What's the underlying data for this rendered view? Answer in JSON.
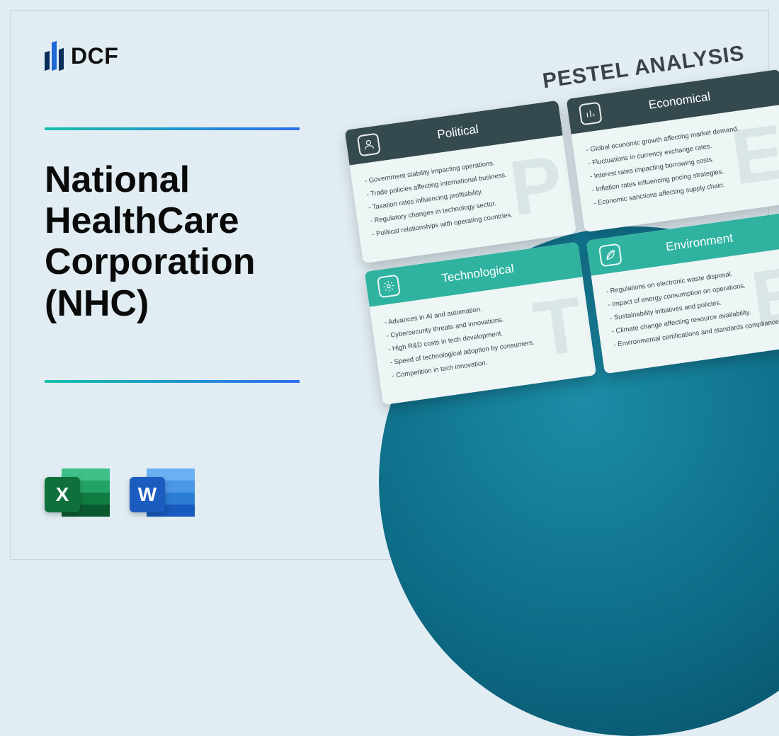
{
  "logo_text": "DCF",
  "title": "National HealthCare Corporation (NHC)",
  "file_icons": {
    "excel_letter": "X",
    "word_letter": "W"
  },
  "pestel": {
    "heading": "PESTEL ANALYSIS",
    "cards": [
      {
        "key": "political",
        "title": "Political",
        "watermark": "P",
        "variant": "dark",
        "icon": "user",
        "items": [
          "Government stability impacting operations.",
          "Trade policies affecting international business.",
          "Taxation rates influencing profitability.",
          "Regulatory changes in technology sector.",
          "Political relationships with operating countries."
        ]
      },
      {
        "key": "economical",
        "title": "Economical",
        "watermark": "E",
        "variant": "dark",
        "icon": "bars",
        "items": [
          "Global economic growth affecting market demand.",
          "Fluctuations in currency exchange rates.",
          "Interest rates impacting borrowing costs.",
          "Inflation rates influencing pricing strategies.",
          "Economic sanctions affecting supply chain."
        ]
      },
      {
        "key": "technological",
        "title": "Technological",
        "watermark": "T",
        "variant": "teal",
        "icon": "gear",
        "items": [
          "Advances in AI and automation.",
          "Cybersecurity threats and innovations.",
          "High R&D costs in tech development.",
          "Speed of technological adoption by consumers.",
          "Competition in tech innovation."
        ]
      },
      {
        "key": "environment",
        "title": "Environment",
        "watermark": "E",
        "variant": "teal",
        "icon": "leaf",
        "items": [
          "Regulations on electronic waste disposal.",
          "Impact of energy consumption on operations.",
          "Sustainability initiatives and policies.",
          "Climate change affecting resource availability.",
          "Environmental certifications and standards compliance."
        ]
      }
    ]
  },
  "colors": {
    "page_bg": "#e1edf3",
    "circle_gradient": [
      "#1c8ca6",
      "#0d6b86",
      "#074a5f"
    ],
    "rule_gradient": [
      "#16c0a8",
      "#2e6ff0"
    ],
    "card_dark_header": "#354a4e",
    "card_teal_header": "#2fb3a0",
    "card_body_bg": "#eef5f5",
    "watermark": "rgba(180,200,200,0.35)",
    "excel": "#107c41",
    "word": "#2b7cd3"
  }
}
